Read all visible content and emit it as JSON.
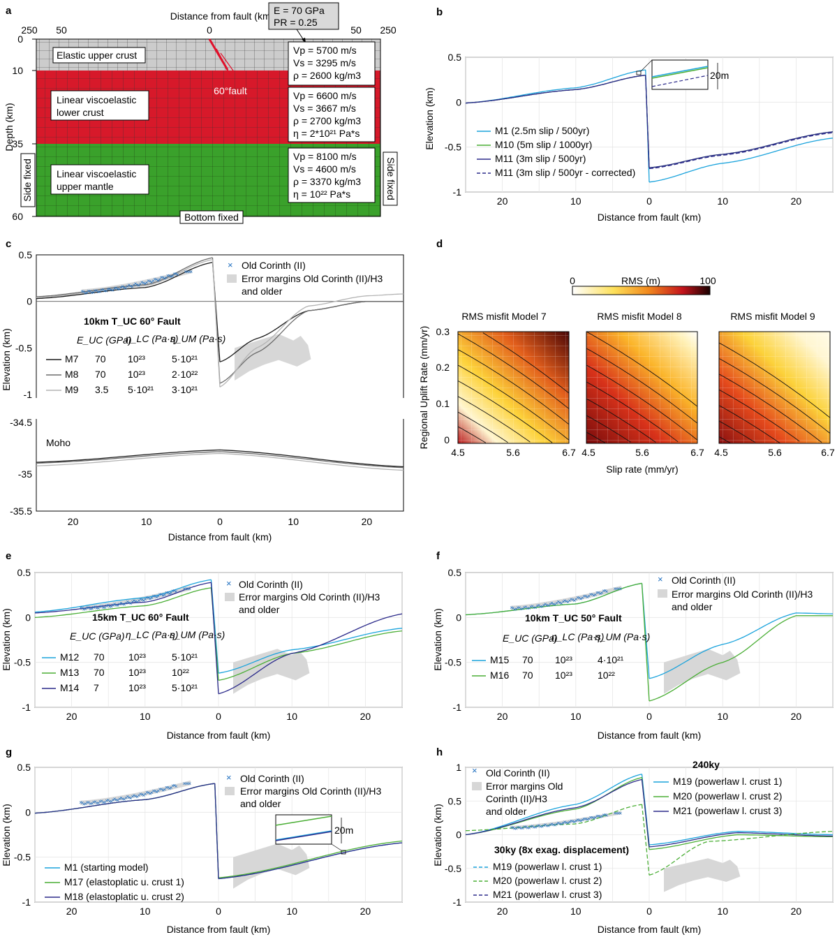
{
  "panel_labels": [
    "a",
    "b",
    "c",
    "d",
    "e",
    "f",
    "g",
    "h"
  ],
  "a": {
    "xlabel": "Distance from fault (km)",
    "ylabel": "Depth (km)",
    "xticks": [
      "250",
      "50",
      "0",
      "50",
      "250"
    ],
    "yticks": [
      "0",
      "10",
      "35",
      "60"
    ],
    "material_box": [
      "E = 70 GPa",
      "PR = 0.25"
    ],
    "fault_label": "60°fault",
    "layers": [
      {
        "name": "Elastic upper crust",
        "lines": [
          "Elastic upper crust"
        ],
        "color": "#cccccc",
        "props": [
          "Vp = 5700 m/s",
          "Vs = 3295 m/s",
          "ρ = 2600 kg/m3"
        ]
      },
      {
        "name": "Linear viscoelastic lower crust",
        "lines": [
          "Linear viscoelastic",
          "lower crust"
        ],
        "color": "#d7192a",
        "props": [
          "Vp = 6600 m/s",
          "Vs = 3667 m/s",
          "ρ = 2700 kg/m3",
          "η = 2*10²¹ Pa*s"
        ]
      },
      {
        "name": "Linear viscoelastic upper mantle",
        "lines": [
          "Linear viscoelastic",
          "upper mantle"
        ],
        "color": "#3aa12b",
        "props": [
          "Vp = 8100 m/s",
          "Vs = 4600 m/s",
          "ρ = 3370 kg/m3",
          "η = 10²² Pa*s"
        ]
      }
    ],
    "side_left": "Side fixed",
    "side_right": "Side fixed",
    "bottom": "Bottom fixed"
  },
  "colors": {
    "cyan": "#1aa3dc",
    "green": "#4aae35",
    "navy": "#2b2a8a",
    "obs": "#1f6fc0",
    "err": "#d7d7d7",
    "black": "#1a1a1a",
    "grey": "#6b6b6b",
    "lightgrey": "#b3b3b3"
  },
  "b": {
    "legend": [
      "M1 (2.5m slip / 500yr)",
      "M10 (5m slip / 1000yr)",
      "M11 (3m slip / 500yr)",
      "M11 (3m slip / 500yr - corrected)"
    ],
    "inset_label": "20m",
    "xlabel": "Distance from fault (km)",
    "ylabel": "Elevation (km)"
  },
  "c": {
    "legend": [
      "Old Corinth (II)",
      "Error margins Old Corinth (II)/H3",
      "and older"
    ],
    "title": "10km T_UC 60° Fault",
    "cols": [
      "E_UC (GPa)",
      "η_LC (Pa·s)",
      "η_UM (Pa·s)"
    ],
    "rows": [
      {
        "name": "M7",
        "E": "70",
        "lc": "10²³",
        "um": "5·10²¹"
      },
      {
        "name": "M8",
        "E": "70",
        "lc": "10²³",
        "um": "2·10²²"
      },
      {
        "name": "M9",
        "E": "3.5",
        "lc": "5·10²¹",
        "um": "3·10²¹"
      }
    ],
    "moho": "Moho",
    "yticks_lower": [
      "-34.5",
      "-35",
      "-35.5"
    ],
    "xlabel": "Distance from fault (km)",
    "ylabel": "Elevation (km)"
  },
  "d": {
    "colorbar_label": "RMS (m)",
    "colorbar_ticks": [
      "0",
      "100"
    ],
    "titles": [
      "RMS misfit Model 7",
      "RMS misfit Model 8",
      "RMS misfit Model 9"
    ],
    "xticks": [
      "4.5",
      "5.6",
      "6.7"
    ],
    "yticks": [
      "0",
      "0.1",
      "0.2",
      "0.3"
    ],
    "xlabel": "Slip rate (mm/yr)",
    "ylabel": "Regional Uplift Rate (mm/yr)"
  },
  "e": {
    "legend": [
      "Old Corinth (II)",
      "Error margins Old Corinth (II)/H3",
      "and older"
    ],
    "title": "15km T_UC 60° Fault",
    "rows": [
      {
        "name": "M12",
        "E": "70",
        "lc": "10²³",
        "um": "5·10²¹"
      },
      {
        "name": "M13",
        "E": "70",
        "lc": "10²³",
        "um": "10²²"
      },
      {
        "name": "M14",
        "E": "7",
        "lc": "10²³",
        "um": "5·10²¹"
      }
    ],
    "xlabel": "Distance from fault (km)",
    "ylabel": "Elevation (km)"
  },
  "f": {
    "legend": [
      "Old Corinth (II)",
      "Error margins Old Corinth (II)/H3",
      "and older"
    ],
    "title": "10km T_UC 50° Fault",
    "rows": [
      {
        "name": "M15",
        "E": "70",
        "lc": "10²³",
        "um": "4·10²¹"
      },
      {
        "name": "M16",
        "E": "70",
        "lc": "10²³",
        "um": "10²²"
      }
    ],
    "xlabel": "Distance from fault (km)",
    "ylabel": "Elevation (km)"
  },
  "g": {
    "legend_obs": [
      "Old Corinth (II)",
      "Error margins Old Corinth (II)/H3",
      "and older"
    ],
    "legend": [
      "M1 (starting model)",
      "M17 (elastoplatic u. crust 1)",
      "M18 (elastoplatic u. crust 2)"
    ],
    "inset_label": "20m",
    "xlabel": "Distance from fault (km)",
    "ylabel": "Elevation (km)"
  },
  "h": {
    "legend_obs": [
      "Old Corinth (II)",
      "Error margins Old",
      "Corinth (II)/H3",
      "and older"
    ],
    "head1": "240ky",
    "legend1": [
      "M19 (powerlaw l. crust 1)",
      "M20 (powerlaw l. crust 2)",
      "M21 (powerlaw l. crust 3)"
    ],
    "head2": "30ky (8x exag. displacement)",
    "legend2": [
      "M19 (powerlaw l. crust 1)",
      "M20 (powerlaw l. crust 2)",
      "M21 (powerlaw l. crust 3)"
    ],
    "yticks": [
      "1",
      "0.5",
      "0",
      "-0.5",
      "-1"
    ],
    "xlabel": "Distance from fault (km)",
    "ylabel": "Elevation (km)"
  },
  "chart_data": [
    {
      "panel": "b",
      "type": "line",
      "xlim": [
        -25,
        25
      ],
      "ylim": [
        -1,
        0.5
      ],
      "xticks": [
        20,
        10,
        0,
        10,
        20
      ],
      "yticks": [
        0.5,
        0,
        -0.5,
        -1
      ],
      "series": [
        {
          "name": "M1 (2.5m slip / 500yr)",
          "footwall": [
            [
              -25,
              -0.01
            ],
            [
              -10,
              0.16
            ],
            [
              -0.5,
              0.36
            ]
          ],
          "hangingwall": [
            [
              0,
              -0.89
            ],
            [
              10,
              -0.68
            ],
            [
              25,
              -0.4
            ]
          ]
        },
        {
          "name": "M10 (5m slip / 1000yr)",
          "footwall": [
            [
              -25,
              -0.01
            ],
            [
              -10,
              0.14
            ],
            [
              -0.5,
              0.3
            ]
          ],
          "hangingwall": [
            [
              0,
              -0.73
            ],
            [
              10,
              -0.58
            ],
            [
              25,
              -0.33
            ]
          ]
        },
        {
          "name": "M11 (3m slip / 500yr)",
          "footwall": [
            [
              -25,
              -0.01
            ],
            [
              -10,
              0.14
            ],
            [
              -0.5,
              0.3
            ]
          ],
          "hangingwall": [
            [
              0,
              -0.73
            ],
            [
              10,
              -0.58
            ],
            [
              25,
              -0.33
            ]
          ]
        },
        {
          "name": "M11 (3m slip / 500yr - corrected)",
          "footwall": [
            [
              -25,
              -0.01
            ],
            [
              -10,
              0.14
            ],
            [
              -0.5,
              0.3
            ]
          ],
          "hangingwall": [
            [
              0,
              -0.74
            ],
            [
              10,
              -0.59
            ],
            [
              25,
              -0.34
            ]
          ]
        }
      ]
    },
    {
      "panel": "c",
      "type": "line",
      "xlim": [
        -25,
        25
      ],
      "ylim_upper": [
        -1,
        0.5
      ],
      "ylim_lower": [
        -35.5,
        -34.5
      ],
      "xticks": [
        20,
        10,
        0,
        10,
        20
      ],
      "yticks_upper": [
        0.5,
        0,
        -0.5,
        -1
      ],
      "series": [
        {
          "name": "M7",
          "surface": [
            [
              -25,
              0.03
            ],
            [
              -10,
              0.15
            ],
            [
              -1,
              0.42
            ],
            [
              0,
              -0.65
            ],
            [
              5,
              -0.4
            ],
            [
              12,
              -0.1
            ],
            [
              20,
              0.0
            ],
            [
              25,
              0.0
            ]
          ],
          "moho": [
            [
              -25,
              -34.95
            ],
            [
              0,
              -34.81
            ],
            [
              25,
              -35.0
            ]
          ]
        },
        {
          "name": "M8",
          "surface": [
            [
              -25,
              0.05
            ],
            [
              -10,
              0.18
            ],
            [
              -1,
              0.47
            ],
            [
              0,
              -0.88
            ],
            [
              5,
              -0.55
            ],
            [
              12,
              -0.1
            ],
            [
              20,
              0.0
            ],
            [
              25,
              0.0
            ]
          ],
          "moho": [
            [
              -25,
              -34.96
            ],
            [
              0,
              -34.83
            ],
            [
              25,
              -35.01
            ]
          ]
        },
        {
          "name": "M9",
          "surface": [
            [
              -25,
              0.04
            ],
            [
              -10,
              0.17
            ],
            [
              -1,
              0.45
            ],
            [
              0,
              -0.92
            ],
            [
              5,
              -0.5
            ],
            [
              12,
              -0.05
            ],
            [
              20,
              0.06
            ],
            [
              25,
              0.08
            ]
          ],
          "moho": [
            [
              -25,
              -34.99
            ],
            [
              0,
              -34.85
            ],
            [
              25,
              -35.04
            ]
          ]
        }
      ],
      "observations": {
        "name": "Old Corinth (II)",
        "x_range": [
          -18.7,
          -5.7
        ],
        "y_range": [
          0.11,
          0.33
        ]
      }
    },
    {
      "panel": "d",
      "type": "heatmap",
      "xlim": [
        4.5,
        6.7
      ],
      "ylim": [
        0,
        0.3
      ],
      "colorbar": [
        0,
        100
      ],
      "models": [
        "Model 7",
        "Model 8",
        "Model 9"
      ]
    },
    {
      "panel": "e",
      "type": "line",
      "xlim": [
        -25,
        25
      ],
      "ylim": [
        -1,
        0.5
      ],
      "series": [
        {
          "name": "M12",
          "footwall": [
            [
              -25,
              0.06
            ],
            [
              -10,
              0.22
            ],
            [
              -1,
              0.42
            ]
          ],
          "hangingwall": [
            [
              0,
              -0.62
            ],
            [
              10,
              -0.36
            ],
            [
              25,
              -0.12
            ]
          ]
        },
        {
          "name": "M13",
          "footwall": [
            [
              -25,
              0.0
            ],
            [
              -10,
              0.13
            ],
            [
              -1,
              0.33
            ]
          ],
          "hangingwall": [
            [
              0,
              -0.7
            ],
            [
              10,
              -0.4
            ],
            [
              25,
              -0.15
            ]
          ]
        },
        {
          "name": "M14",
          "footwall": [
            [
              -25,
              0.05
            ],
            [
              -10,
              0.17
            ],
            [
              -1,
              0.39
            ]
          ],
          "hangingwall": [
            [
              0,
              -0.85
            ],
            [
              10,
              -0.4
            ],
            [
              25,
              0.04
            ]
          ]
        }
      ]
    },
    {
      "panel": "f",
      "type": "line",
      "xlim": [
        -25,
        25
      ],
      "ylim": [
        -1,
        0.5
      ],
      "series": [
        {
          "name": "M15",
          "footwall": [
            [
              -25,
              0.03
            ],
            [
              -10,
              0.15
            ],
            [
              -1,
              0.38
            ]
          ],
          "hangingwall": [
            [
              0,
              -0.68
            ],
            [
              10,
              -0.3
            ],
            [
              20,
              0.05
            ],
            [
              25,
              0.04
            ]
          ]
        },
        {
          "name": "M16",
          "footwall": [
            [
              -25,
              0.03
            ],
            [
              -10,
              0.15
            ],
            [
              -1,
              0.38
            ]
          ],
          "hangingwall": [
            [
              0,
              -0.93
            ],
            [
              10,
              -0.5
            ],
            [
              20,
              0.02
            ],
            [
              25,
              0.02
            ]
          ]
        }
      ]
    },
    {
      "panel": "g",
      "type": "line",
      "xlim": [
        -25,
        25
      ],
      "ylim": [
        -1,
        0.5
      ],
      "series": [
        {
          "name": "M1 (starting model)",
          "footwall": [
            [
              -25,
              -0.01
            ],
            [
              -10,
              0.14
            ],
            [
              -0.5,
              0.32
            ]
          ],
          "hangingwall": [
            [
              0,
              -0.74
            ],
            [
              25,
              -0.34
            ]
          ]
        },
        {
          "name": "M17 (elastoplatic u. crust 1)",
          "footwall": [
            [
              -25,
              -0.01
            ],
            [
              -10,
              0.14
            ],
            [
              -0.5,
              0.32
            ]
          ],
          "hangingwall": [
            [
              0,
              -0.73
            ],
            [
              25,
              -0.32
            ]
          ]
        },
        {
          "name": "M18 (elastoplatic u. crust 2)",
          "footwall": [
            [
              -25,
              -0.01
            ],
            [
              -10,
              0.14
            ],
            [
              -0.5,
              0.32
            ]
          ],
          "hangingwall": [
            [
              0,
              -0.74
            ],
            [
              25,
              -0.34
            ]
          ]
        }
      ]
    },
    {
      "panel": "h",
      "type": "line",
      "xlim": [
        -25,
        25
      ],
      "ylim": [
        -1,
        1
      ],
      "series": [
        {
          "name": "M19 (powerlaw l. crust 1) 240ky",
          "footwall": [
            [
              -25,
              0.0
            ],
            [
              -10,
              0.45
            ],
            [
              -1,
              0.9
            ]
          ],
          "hangingwall": [
            [
              0,
              -0.15
            ],
            [
              12,
              0.05
            ],
            [
              25,
              0.0
            ]
          ]
        },
        {
          "name": "M20 (powerlaw l. crust 2) 240ky",
          "footwall": [
            [
              -25,
              0.0
            ],
            [
              -10,
              0.38
            ],
            [
              -1,
              0.85
            ]
          ],
          "hangingwall": [
            [
              0,
              -0.22
            ],
            [
              12,
              0.0
            ],
            [
              25,
              -0.03
            ]
          ]
        },
        {
          "name": "M21 (powerlaw l. crust 3) 240ky",
          "footwall": [
            [
              -25,
              0.0
            ],
            [
              -10,
              0.4
            ],
            [
              -1,
              0.82
            ]
          ],
          "hangingwall": [
            [
              0,
              -0.18
            ],
            [
              12,
              0.03
            ],
            [
              25,
              -0.02
            ]
          ]
        },
        {
          "name": "30ky (dashed)",
          "footwall": [
            [
              -25,
              0.06
            ],
            [
              -10,
              0.16
            ],
            [
              -1,
              0.45
            ]
          ],
          "hangingwall": [
            [
              0,
              -0.6
            ],
            [
              8,
              -0.1
            ],
            [
              25,
              0.05
            ]
          ]
        }
      ]
    }
  ]
}
